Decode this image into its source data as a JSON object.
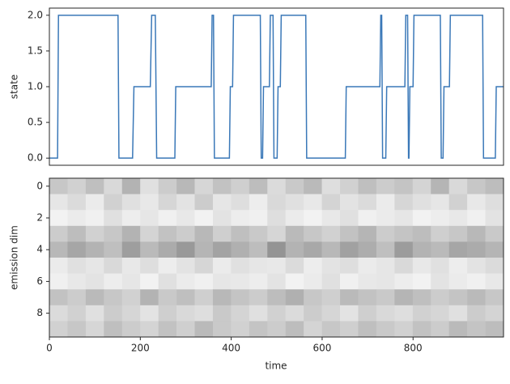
{
  "chart_data": [
    {
      "type": "line",
      "ylabel": "state",
      "color": "#3a78b8",
      "x": [
        0,
        18,
        20,
        151,
        153,
        183,
        186,
        222,
        225,
        233,
        236,
        276,
        278,
        356,
        358,
        361,
        363,
        396,
        398,
        403,
        405,
        464,
        466,
        469,
        471,
        484,
        486,
        492,
        494,
        501,
        503,
        508,
        510,
        564,
        566,
        651,
        653,
        727,
        729,
        731,
        733,
        740,
        742,
        782,
        784,
        788,
        790,
        791,
        793,
        800,
        802,
        860,
        862,
        866,
        868,
        880,
        882,
        953,
        955,
        981,
        983,
        999
      ],
      "values": [
        0,
        0,
        2,
        2,
        0,
        0,
        1,
        1,
        2,
        2,
        0,
        0,
        1,
        1,
        2,
        2,
        0,
        0,
        1,
        1,
        2,
        2,
        0,
        0,
        1,
        1,
        2,
        2,
        0,
        0,
        1,
        1,
        2,
        2,
        0,
        0,
        1,
        1,
        2,
        2,
        0,
        0,
        1,
        1,
        2,
        2,
        0,
        0,
        1,
        1,
        2,
        2,
        0,
        0,
        1,
        1,
        2,
        2,
        0,
        0,
        1,
        1
      ],
      "xlim": [
        0,
        999
      ],
      "ylim": [
        -0.1,
        2.1
      ],
      "yticks": [
        {
          "value": 0,
          "label": "0.0"
        },
        {
          "value": 0.5,
          "label": "0.5"
        },
        {
          "value": 1,
          "label": "1.0"
        },
        {
          "value": 1.5,
          "label": "1.5"
        },
        {
          "value": 2,
          "label": "2.0"
        }
      ]
    },
    {
      "type": "heatmap",
      "xlabel": "time",
      "ylabel": "emission dim",
      "z": [
        [
          0.22,
          0.18,
          0.25,
          0.15,
          0.3,
          0.12,
          0.2,
          0.28,
          0.16,
          0.24,
          0.19,
          0.26,
          0.14,
          0.21,
          0.27,
          0.13,
          0.18,
          0.25,
          0.2,
          0.23,
          0.17,
          0.29,
          0.15,
          0.22,
          0.26
        ],
        [
          0.1,
          0.14,
          0.08,
          0.18,
          0.12,
          0.09,
          0.16,
          0.11,
          0.2,
          0.1,
          0.13,
          0.07,
          0.15,
          0.12,
          0.09,
          0.17,
          0.11,
          0.14,
          0.08,
          0.16,
          0.12,
          0.1,
          0.18,
          0.09,
          0.13
        ],
        [
          0.05,
          0.08,
          0.06,
          0.12,
          0.07,
          0.1,
          0.06,
          0.09,
          0.05,
          0.11,
          0.07,
          0.06,
          0.13,
          0.08,
          0.05,
          0.09,
          0.12,
          0.06,
          0.08,
          0.1,
          0.05,
          0.07,
          0.09,
          0.06,
          0.11
        ],
        [
          0.2,
          0.26,
          0.18,
          0.22,
          0.3,
          0.17,
          0.24,
          0.2,
          0.28,
          0.19,
          0.25,
          0.21,
          0.16,
          0.27,
          0.22,
          0.18,
          0.24,
          0.29,
          0.2,
          0.23,
          0.26,
          0.19,
          0.22,
          0.28,
          0.21
        ],
        [
          0.28,
          0.35,
          0.3,
          0.25,
          0.38,
          0.27,
          0.33,
          0.4,
          0.29,
          0.36,
          0.31,
          0.26,
          0.42,
          0.3,
          0.34,
          0.28,
          0.37,
          0.32,
          0.25,
          0.39,
          0.3,
          0.27,
          0.35,
          0.33,
          0.29
        ],
        [
          0.08,
          0.12,
          0.1,
          0.15,
          0.09,
          0.13,
          0.07,
          0.11,
          0.16,
          0.08,
          0.12,
          0.1,
          0.09,
          0.14,
          0.07,
          0.11,
          0.13,
          0.08,
          0.1,
          0.15,
          0.09,
          0.12,
          0.07,
          0.11,
          0.14
        ],
        [
          0.06,
          0.09,
          0.11,
          0.07,
          0.1,
          0.05,
          0.12,
          0.08,
          0.06,
          0.1,
          0.09,
          0.07,
          0.11,
          0.05,
          0.08,
          0.12,
          0.06,
          0.09,
          0.1,
          0.07,
          0.05,
          0.11,
          0.08,
          0.06,
          0.09
        ],
        [
          0.24,
          0.2,
          0.27,
          0.22,
          0.18,
          0.3,
          0.21,
          0.25,
          0.19,
          0.28,
          0.23,
          0.2,
          0.26,
          0.31,
          0.22,
          0.19,
          0.27,
          0.24,
          0.21,
          0.29,
          0.25,
          0.2,
          0.23,
          0.27,
          0.22
        ],
        [
          0.14,
          0.18,
          0.12,
          0.2,
          0.16,
          0.11,
          0.19,
          0.15,
          0.13,
          0.21,
          0.17,
          0.12,
          0.18,
          0.14,
          0.2,
          0.16,
          0.11,
          0.19,
          0.15,
          0.13,
          0.18,
          0.16,
          0.12,
          0.2,
          0.17
        ],
        [
          0.18,
          0.22,
          0.16,
          0.25,
          0.2,
          0.17,
          0.24,
          0.19,
          0.27,
          0.21,
          0.18,
          0.23,
          0.2,
          0.26,
          0.17,
          0.22,
          0.19,
          0.25,
          0.21,
          0.18,
          0.24,
          0.2,
          0.27,
          0.23,
          0.26
        ]
      ],
      "xlim": [
        0,
        999
      ],
      "ylim": [
        9.5,
        -0.5
      ],
      "xticks": [
        0,
        200,
        400,
        600,
        800
      ],
      "yticks": [
        0,
        2,
        4,
        6,
        8
      ]
    }
  ]
}
